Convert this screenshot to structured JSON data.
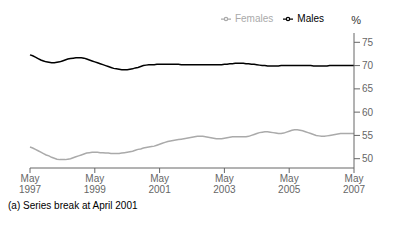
{
  "chart_data": {
    "type": "line",
    "annotations": [
      "%",
      "(a) Series break at April 2001"
    ],
    "categories": [
      "May\n1997",
      null,
      null,
      null,
      null,
      null,
      null,
      null,
      null,
      null,
      null,
      null,
      null,
      null,
      null,
      null,
      null,
      null,
      null,
      null,
      null,
      null,
      null,
      null,
      "May\n1999",
      null,
      null,
      null,
      null,
      null,
      null,
      null,
      null,
      null,
      null,
      null,
      null,
      null,
      null,
      null,
      null,
      null,
      null,
      null,
      null,
      null,
      null,
      null,
      "May\n2001",
      null,
      null,
      null,
      null,
      null,
      null,
      null,
      null,
      null,
      null,
      null,
      null,
      null,
      null,
      null,
      null,
      null,
      null,
      null,
      null,
      null,
      null,
      null,
      "May\n2003",
      null,
      null,
      null,
      null,
      null,
      null,
      null,
      null,
      null,
      null,
      null,
      null,
      null,
      null,
      null,
      null,
      null,
      null,
      null,
      null,
      null,
      null,
      null,
      "May\n2005",
      null,
      null,
      null,
      null,
      null,
      null,
      null,
      null,
      null,
      null,
      null,
      null,
      null,
      null,
      null,
      null,
      null,
      null,
      null,
      null,
      null,
      null,
      null,
      "May\n2007"
    ],
    "series": [
      {
        "name": "Males",
        "color": "#000000",
        "values": [
          72.3,
          72.1,
          71.8,
          71.5,
          71.2,
          71.0,
          70.8,
          70.7,
          70.6,
          70.6,
          70.7,
          70.8,
          71.0,
          71.2,
          71.4,
          71.5,
          71.6,
          71.7,
          71.7,
          71.7,
          71.6,
          71.4,
          71.2,
          71.0,
          70.8,
          70.6,
          70.4,
          70.2,
          70.0,
          69.8,
          69.6,
          69.4,
          69.3,
          69.2,
          69.1,
          69.1,
          69.1,
          69.2,
          69.3,
          69.5,
          69.6,
          69.8,
          70.0,
          70.1,
          70.2,
          70.2,
          70.2,
          70.3,
          70.3,
          70.3,
          70.3,
          70.3,
          70.3,
          70.3,
          70.3,
          70.3,
          70.2,
          70.2,
          70.2,
          70.2,
          70.2,
          70.2,
          70.2,
          70.2,
          70.2,
          70.2,
          70.2,
          70.2,
          70.2,
          70.2,
          70.2,
          70.2,
          70.3,
          70.3,
          70.4,
          70.4,
          70.5,
          70.5,
          70.5,
          70.5,
          70.4,
          70.4,
          70.3,
          70.3,
          70.2,
          70.1,
          70.0,
          70.0,
          69.9,
          69.9,
          69.9,
          69.9,
          69.9,
          70.0,
          70.0,
          70.0,
          70.0,
          70.0,
          70.0,
          70.0,
          70.0,
          70.0,
          70.0,
          70.0,
          70.0,
          69.9,
          69.9,
          69.9,
          69.9,
          69.9,
          69.9,
          70.0,
          70.0,
          70.0,
          70.0,
          70.0,
          70.0,
          70.0,
          70.0,
          70.0,
          70.0
        ]
      },
      {
        "name": "Females",
        "color": "#aaaaaa",
        "values": [
          52.5,
          52.3,
          52.0,
          51.7,
          51.4,
          51.1,
          50.8,
          50.6,
          50.3,
          50.1,
          49.9,
          49.8,
          49.8,
          49.8,
          49.9,
          50.0,
          50.2,
          50.4,
          50.6,
          50.8,
          51.0,
          51.2,
          51.3,
          51.4,
          51.4,
          51.4,
          51.3,
          51.3,
          51.2,
          51.2,
          51.1,
          51.1,
          51.1,
          51.1,
          51.2,
          51.3,
          51.4,
          51.5,
          51.6,
          51.8,
          52.0,
          52.1,
          52.3,
          52.4,
          52.5,
          52.6,
          52.7,
          52.9,
          53.1,
          53.3,
          53.5,
          53.7,
          53.8,
          53.9,
          54.0,
          54.1,
          54.2,
          54.3,
          54.4,
          54.5,
          54.6,
          54.7,
          54.8,
          54.8,
          54.8,
          54.7,
          54.6,
          54.5,
          54.4,
          54.3,
          54.3,
          54.3,
          54.4,
          54.5,
          54.6,
          54.7,
          54.7,
          54.7,
          54.7,
          54.7,
          54.7,
          54.8,
          55.0,
          55.2,
          55.4,
          55.6,
          55.7,
          55.8,
          55.8,
          55.7,
          55.6,
          55.5,
          55.4,
          55.4,
          55.5,
          55.7,
          55.9,
          56.1,
          56.2,
          56.2,
          56.1,
          56.0,
          55.8,
          55.6,
          55.4,
          55.2,
          55.0,
          54.9,
          54.8,
          54.8,
          54.9,
          55.0,
          55.1,
          55.2,
          55.3,
          55.4,
          55.4,
          55.4,
          55.4,
          55.4,
          55.4
        ]
      }
    ],
    "ylim": [
      48,
      77
    ],
    "yticks": [
      50,
      55,
      60,
      65,
      70,
      75
    ],
    "legend": "upper right",
    "grid": false
  }
}
